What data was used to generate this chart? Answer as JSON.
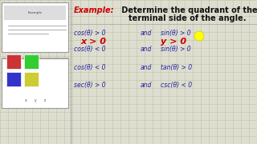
{
  "bg_color": "#deded0",
  "grid_color": "#c0c0a8",
  "title_example": "Example:",
  "title_rest1": " Determine the quadrant of the",
  "title_rest2": "terminal side of the angle.",
  "title_example_color": "#cc0000",
  "title_rest_color": "#111111",
  "math_color": "#2222aa",
  "red_color": "#cc0000",
  "dot_color": "#ffff00",
  "dot_edge_color": "#cccc00",
  "lines": [
    [
      "cos(θ) > 0",
      " and ",
      "sin(θ) > 0"
    ],
    [
      "cos(θ) < 0",
      " and ",
      "sin(θ) > 0"
    ],
    [
      "cos(θ) < 0",
      " and ",
      "tan(θ) > 0"
    ],
    [
      "sec(θ) > 0",
      " and ",
      "csc(θ) < 0"
    ]
  ],
  "red_lines": [
    "x > 0",
    "y > 0"
  ]
}
